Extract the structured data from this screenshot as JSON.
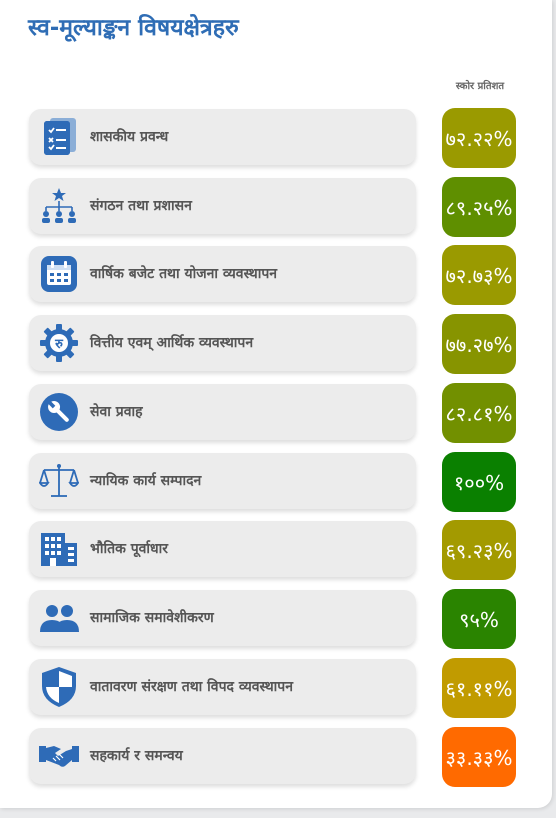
{
  "title": "स्व-मूल्याङ्कन विषयक्षेत्रहरु",
  "column_header": "स्कोर प्रतिशत",
  "colors": {
    "title": "#2f6db5",
    "icon": "#2e6bb7",
    "row_bg": "#ececec"
  },
  "areas": [
    {
      "label": "शासकीय प्रवन्ध",
      "score": "७२.२२%",
      "color": "#9a9a00",
      "icon": "checklist-icon"
    },
    {
      "label": "संगठन तथा प्रशासन",
      "score": "८९.२५%",
      "color": "#5f8f00",
      "icon": "org-chart-icon"
    },
    {
      "label": "वार्षिक बजेट तथा योजना व्यवस्थापन",
      "score": "७२.७३%",
      "color": "#9a9a00",
      "icon": "calendar-icon"
    },
    {
      "label": "वित्तीय एवम् आर्थिक व्यवस्थापन",
      "score": "७७.२७%",
      "color": "#879400",
      "icon": "rupee-gear-icon"
    },
    {
      "label": "सेवा प्रवाह",
      "score": "८२.८१%",
      "color": "#729000",
      "icon": "wrench-icon"
    },
    {
      "label": "न्यायिक कार्य सम्पादन",
      "score": "१००%",
      "color": "#0a8000",
      "icon": "scales-icon"
    },
    {
      "label": "भौतिक पूर्वाधार",
      "score": "६९.२३%",
      "color": "#a39a00",
      "icon": "building-icon"
    },
    {
      "label": "सामाजिक समावेशीकरण",
      "score": "९५%",
      "color": "#2a8400",
      "icon": "people-icon"
    },
    {
      "label": "वातावरण संरक्षण तथा विपद व्यवस्थापन",
      "score": "६१.११%",
      "color": "#c19b00",
      "icon": "shield-icon"
    },
    {
      "label": "सहकार्य र समन्वय",
      "score": "३३.३३%",
      "color": "#ff6a00",
      "icon": "handshake-icon"
    }
  ]
}
